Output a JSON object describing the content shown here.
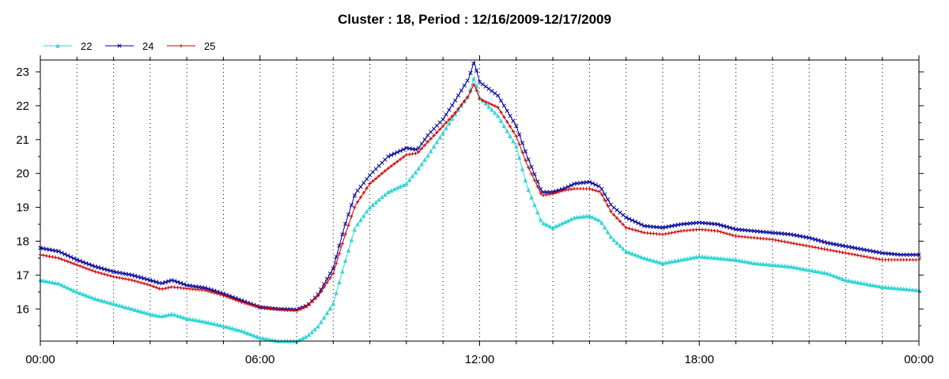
{
  "chart_data": {
    "type": "line",
    "title": "Cluster : 18, Period : 12/16/2009-12/17/2009",
    "xlabel": "",
    "ylabel": "",
    "x_unit": "hours since 12/16/2009 00:00",
    "xlim": [
      0,
      24
    ],
    "ylim": [
      15.05,
      23.35
    ],
    "x_ticks": [
      0,
      6,
      12,
      18,
      24
    ],
    "x_tick_labels": [
      "00:00",
      "06:00",
      "12:00",
      "18:00",
      "00:00"
    ],
    "y_ticks": [
      16,
      17,
      18,
      19,
      20,
      21,
      22,
      23
    ],
    "y_tick_labels": [
      "16",
      "17",
      "18",
      "19",
      "20",
      "21",
      "22",
      "23"
    ],
    "grid": "vertical dotted at each hour",
    "legend_position": "top-left",
    "series": [
      {
        "name": "22",
        "color": "#33d6d6",
        "marker": "triangle",
        "x": [
          0,
          0.5,
          1,
          1.5,
          2,
          2.5,
          3,
          3.3,
          3.6,
          4,
          4.5,
          5,
          5.5,
          6,
          6.5,
          7,
          7.3,
          7.6,
          8,
          8.3,
          8.6,
          9,
          9.5,
          10,
          10.3,
          10.6,
          11,
          11.3,
          11.7,
          11.85,
          12,
          12.5,
          13,
          13.3,
          13.7,
          14,
          14.3,
          14.6,
          15,
          15.3,
          15.6,
          16,
          16.5,
          17,
          17.5,
          18,
          18.5,
          19,
          19.5,
          20,
          20.5,
          21,
          21.5,
          22,
          22.5,
          23,
          23.5,
          24
        ],
        "values": [
          16.85,
          16.75,
          16.5,
          16.3,
          16.15,
          16.0,
          15.85,
          15.78,
          15.85,
          15.72,
          15.62,
          15.5,
          15.35,
          15.15,
          15.05,
          15.05,
          15.2,
          15.5,
          16.15,
          17.3,
          18.4,
          19.0,
          19.45,
          19.7,
          20.1,
          20.55,
          21.2,
          21.7,
          22.3,
          22.85,
          22.25,
          21.7,
          20.8,
          19.6,
          18.55,
          18.4,
          18.55,
          18.7,
          18.75,
          18.6,
          18.1,
          17.7,
          17.5,
          17.35,
          17.45,
          17.55,
          17.5,
          17.45,
          17.35,
          17.3,
          17.25,
          17.15,
          17.05,
          16.85,
          16.75,
          16.65,
          16.6,
          16.55
        ]
      },
      {
        "name": "24",
        "color": "#000099",
        "marker": "x",
        "x": [
          0,
          0.5,
          1,
          1.5,
          2,
          2.5,
          3,
          3.3,
          3.6,
          4,
          4.5,
          5,
          5.5,
          6,
          6.5,
          7,
          7.3,
          7.6,
          8,
          8.3,
          8.6,
          9,
          9.5,
          10,
          10.3,
          10.6,
          11,
          11.3,
          11.7,
          11.85,
          12,
          12.5,
          13,
          13.3,
          13.7,
          14,
          14.3,
          14.6,
          15,
          15.3,
          15.6,
          16,
          16.5,
          17,
          17.5,
          18,
          18.5,
          19,
          19.5,
          20,
          20.5,
          21,
          21.5,
          22,
          22.5,
          23,
          23.5,
          24
        ],
        "values": [
          17.8,
          17.7,
          17.45,
          17.25,
          17.1,
          17.0,
          16.85,
          16.75,
          16.85,
          16.7,
          16.62,
          16.45,
          16.25,
          16.05,
          16.0,
          15.98,
          16.1,
          16.45,
          17.2,
          18.4,
          19.4,
          19.95,
          20.5,
          20.75,
          20.7,
          21.15,
          21.6,
          22.1,
          22.8,
          23.3,
          22.7,
          22.3,
          21.4,
          20.5,
          19.45,
          19.45,
          19.55,
          19.7,
          19.75,
          19.6,
          19.05,
          18.7,
          18.45,
          18.4,
          18.5,
          18.55,
          18.5,
          18.35,
          18.3,
          18.25,
          18.2,
          18.1,
          17.95,
          17.85,
          17.75,
          17.65,
          17.6,
          17.6
        ]
      },
      {
        "name": "25",
        "color": "#cc0000",
        "marker": "plus",
        "x": [
          0,
          0.5,
          1,
          1.5,
          2,
          2.5,
          3,
          3.3,
          3.6,
          4,
          4.5,
          5,
          5.5,
          6,
          6.5,
          7,
          7.3,
          7.6,
          8,
          8.3,
          8.6,
          9,
          9.5,
          10,
          10.3,
          10.6,
          11,
          11.3,
          11.7,
          11.85,
          12,
          12.5,
          13,
          13.3,
          13.7,
          14,
          14.3,
          14.6,
          15,
          15.3,
          15.6,
          16,
          16.5,
          17,
          17.5,
          18,
          18.5,
          19,
          19.5,
          20,
          20.5,
          21,
          21.5,
          22,
          22.5,
          23,
          23.5,
          24
        ],
        "values": [
          17.6,
          17.5,
          17.3,
          17.1,
          16.95,
          16.85,
          16.7,
          16.58,
          16.65,
          16.6,
          16.55,
          16.4,
          16.2,
          16.05,
          15.98,
          15.95,
          16.1,
          16.4,
          17.05,
          18.1,
          19.05,
          19.7,
          20.15,
          20.55,
          20.6,
          20.95,
          21.4,
          21.75,
          22.3,
          22.65,
          22.2,
          21.95,
          21.1,
          20.25,
          19.35,
          19.4,
          19.5,
          19.55,
          19.55,
          19.45,
          18.85,
          18.4,
          18.25,
          18.2,
          18.3,
          18.35,
          18.3,
          18.15,
          18.1,
          18.05,
          17.95,
          17.85,
          17.75,
          17.65,
          17.55,
          17.45,
          17.45,
          17.45
        ]
      }
    ]
  }
}
